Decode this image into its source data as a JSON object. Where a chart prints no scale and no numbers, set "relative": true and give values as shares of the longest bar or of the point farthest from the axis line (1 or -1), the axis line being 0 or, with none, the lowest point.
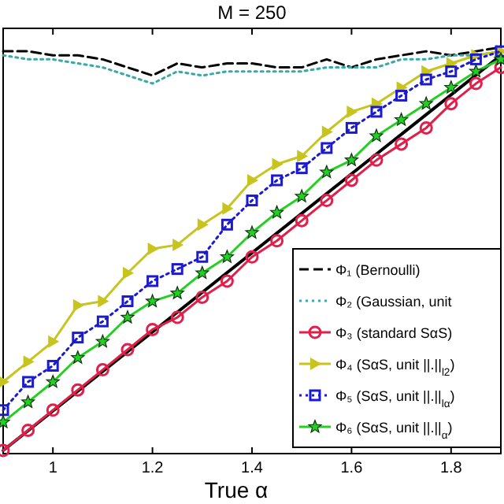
{
  "chart_data": {
    "type": "line",
    "title": "M = 250",
    "xlabel": "True α",
    "relative": true,
    "x": [
      0.9,
      0.95,
      1.0,
      1.05,
      1.1,
      1.15,
      1.2,
      1.25,
      1.3,
      1.35,
      1.4,
      1.45,
      1.5,
      1.55,
      1.6,
      1.65,
      1.7,
      1.75,
      1.8,
      1.85,
      1.9
    ],
    "xlim": [
      0.9,
      1.9
    ],
    "xticks": [
      1,
      1.2,
      1.4,
      1.6,
      1.8
    ],
    "legend": "bottom right",
    "series": [
      {
        "name": "Φ₁ (Bernoulli)",
        "color": "#000000",
        "line_style": "dashed",
        "marker": "none",
        "values": [
          0.99,
          0.99,
          0.98,
          0.98,
          0.97,
          0.95,
          0.93,
          0.96,
          0.95,
          0.96,
          0.96,
          0.95,
          0.95,
          0.97,
          0.95,
          0.97,
          0.98,
          0.99,
          0.98,
          0.99,
          1
        ]
      },
      {
        "name": "Φ₂ (Gaussian, unit",
        "color": "#3aa8a8",
        "line_style": "dotted",
        "marker": "none",
        "values": [
          0.98,
          0.97,
          0.97,
          0.96,
          0.95,
          0.93,
          0.91,
          0.94,
          0.93,
          0.94,
          0.94,
          0.94,
          0.94,
          0.95,
          0.95,
          0.95,
          0.97,
          0.97,
          0.98,
          0.98,
          0.99
        ]
      },
      {
        "color": "#000000",
        "line_style": "solid",
        "marker": "none",
        "x": [
          0.9,
          1.9
        ],
        "values": [
          0,
          0.98
        ]
      },
      {
        "name": "Φ₃ (standard SαS)",
        "color": "#e0204a",
        "line_style": "solid",
        "marker": "circle",
        "values": [
          0,
          0.05,
          0.1,
          0.15,
          0.2,
          0.25,
          0.3,
          0.33,
          0.38,
          0.42,
          0.48,
          0.52,
          0.57,
          0.62,
          0.67,
          0.72,
          0.76,
          0.8,
          0.86,
          0.91,
          0.95
        ]
      },
      {
        "name": "Φ₄ (SαS, unit ||.||$_{l2}$)",
        "color": "#c8c41e",
        "line_style": "solid",
        "marker": "triangle",
        "values": [
          0.17,
          0.22,
          0.27,
          0.36,
          0.37,
          0.44,
          0.5,
          0.51,
          0.56,
          0.6,
          0.67,
          0.71,
          0.73,
          0.79,
          0.84,
          0.86,
          0.9,
          0.94,
          0.96,
          0.98,
          0.99
        ]
      },
      {
        "name": "Φ₅ (SαS, unit ||.||$_{lα}$)",
        "color": "#1a1ad0",
        "line_style": "dotted",
        "marker": "square",
        "values": [
          0.1,
          0.17,
          0.21,
          0.28,
          0.32,
          0.37,
          0.42,
          0.45,
          0.48,
          0.56,
          0.62,
          0.67,
          0.7,
          0.75,
          0.8,
          0.84,
          0.88,
          0.92,
          0.94,
          0.97,
          0.99
        ]
      },
      {
        "name": "Φ₆ (SαS, unit ||.||$_{α}$)",
        "color": "#22d022",
        "line_style": "solid",
        "marker": "star",
        "values": [
          0.07,
          0.12,
          0.17,
          0.23,
          0.27,
          0.33,
          0.37,
          0.39,
          0.44,
          0.48,
          0.54,
          0.59,
          0.63,
          0.69,
          0.72,
          0.78,
          0.82,
          0.86,
          0.9,
          0.94,
          0.97
        ]
      }
    ]
  }
}
